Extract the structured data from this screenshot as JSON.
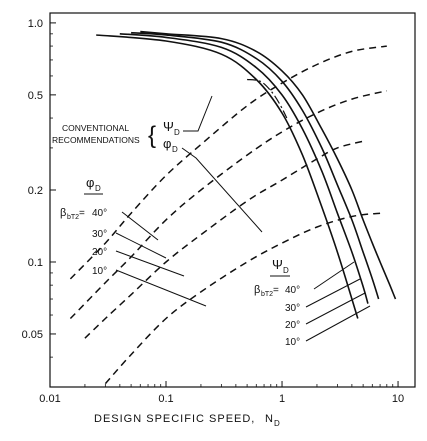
{
  "chart_data": {
    "type": "line",
    "title": "",
    "xlabel": "DESIGN SPECIFIC SPEED,",
    "xlabel_symbol": "N",
    "xlabel_subscript": "D",
    "ylabel": "",
    "x_scale": "log",
    "y_scale": "log",
    "xlim": [
      0.01,
      14
    ],
    "ylim": [
      0.03,
      1.1
    ],
    "x_ticks": [
      {
        "value": 0.01,
        "label": "0.01"
      },
      {
        "value": 0.1,
        "label": "0.1"
      },
      {
        "value": 1,
        "label": "1"
      },
      {
        "value": 10,
        "label": "10"
      }
    ],
    "y_ticks": [
      {
        "value": 1.0,
        "label": "1.0"
      },
      {
        "value": 0.5,
        "label": "0.5"
      },
      {
        "value": 0.2,
        "label": "0.2"
      },
      {
        "value": 0.1,
        "label": "0.1"
      },
      {
        "value": 0.05,
        "label": "0.05"
      }
    ],
    "grid": false,
    "psi_series": [
      {
        "name": "ψD 40°",
        "x": [
          0.025,
          0.1,
          0.3,
          0.6,
          1.0,
          1.5,
          2.2,
          3.0,
          4.0,
          4.5
        ],
        "y": [
          0.89,
          0.84,
          0.74,
          0.58,
          0.42,
          0.28,
          0.17,
          0.11,
          0.07,
          0.058
        ]
      },
      {
        "name": "ψD 30°",
        "x": [
          0.04,
          0.1,
          0.3,
          0.6,
          1.0,
          1.5,
          2.2,
          3.0,
          4.0,
          5.0,
          5.5
        ],
        "y": [
          0.9,
          0.87,
          0.79,
          0.65,
          0.5,
          0.36,
          0.24,
          0.16,
          0.11,
          0.079,
          0.067
        ]
      },
      {
        "name": "ψD 20°",
        "x": [
          0.05,
          0.1,
          0.3,
          0.6,
          1.0,
          1.5,
          2.2,
          3.0,
          4.0,
          5.0,
          6.0,
          6.8
        ],
        "y": [
          0.91,
          0.89,
          0.83,
          0.71,
          0.57,
          0.43,
          0.3,
          0.21,
          0.15,
          0.11,
          0.085,
          0.07
        ]
      },
      {
        "name": "ψD 10°",
        "x": [
          0.06,
          0.1,
          0.3,
          0.6,
          1.0,
          1.5,
          2.2,
          3.0,
          4.0,
          5.0,
          6.0,
          7.0,
          8.5,
          9.5
        ],
        "y": [
          0.92,
          0.9,
          0.86,
          0.76,
          0.63,
          0.5,
          0.36,
          0.27,
          0.2,
          0.15,
          0.12,
          0.1,
          0.08,
          0.07
        ]
      }
    ],
    "phi_series": [
      {
        "name": "φD 40°",
        "x": [
          0.015,
          0.03,
          0.05,
          0.1,
          0.2,
          0.5,
          1.0,
          2.0,
          4.0,
          8.0
        ],
        "y": [
          0.085,
          0.12,
          0.16,
          0.23,
          0.31,
          0.45,
          0.56,
          0.67,
          0.76,
          0.8
        ]
      },
      {
        "name": "φD 30°",
        "x": [
          0.015,
          0.03,
          0.05,
          0.1,
          0.2,
          0.5,
          1.0,
          2.0,
          4.0,
          8.0
        ],
        "y": [
          0.058,
          0.082,
          0.105,
          0.15,
          0.2,
          0.28,
          0.35,
          0.42,
          0.48,
          0.52
        ]
      },
      {
        "name": "φD 20°",
        "x": [
          0.02,
          0.03,
          0.05,
          0.1,
          0.2,
          0.5,
          1.0,
          2.0,
          3.0,
          5.0
        ],
        "y": [
          0.048,
          0.058,
          0.073,
          0.1,
          0.13,
          0.18,
          0.22,
          0.27,
          0.3,
          0.32
        ]
      },
      {
        "name": "φD 10°",
        "x": [
          0.03,
          0.05,
          0.1,
          0.2,
          0.5,
          1.0,
          2.0,
          4.0,
          7.0
        ],
        "y": [
          0.031,
          0.041,
          0.058,
          0.075,
          0.1,
          0.12,
          0.14,
          0.155,
          0.16
        ]
      }
    ],
    "conventional_series": [
      {
        "name": "ψD conventional",
        "x": [
          0.5,
          0.65,
          0.8,
          0.95,
          1.1
        ],
        "y": [
          0.58,
          0.57,
          0.52,
          0.46,
          0.4
        ]
      }
    ],
    "annotations": {
      "conventional_line1": "CONVENTIONAL",
      "conventional_line2": "RECOMMENDATIONS",
      "brace": "{",
      "psi_symbol": "Ψ",
      "phi_symbol": "φ",
      "sub_D": "D",
      "beta_symbol": "β",
      "beta_subscript": "bT2",
      "equals": " = ",
      "phi_angles": [
        "40°",
        "30°",
        "20°",
        "10°"
      ],
      "psi_angles": [
        "40°",
        "30°",
        "20°",
        "10°"
      ]
    }
  }
}
